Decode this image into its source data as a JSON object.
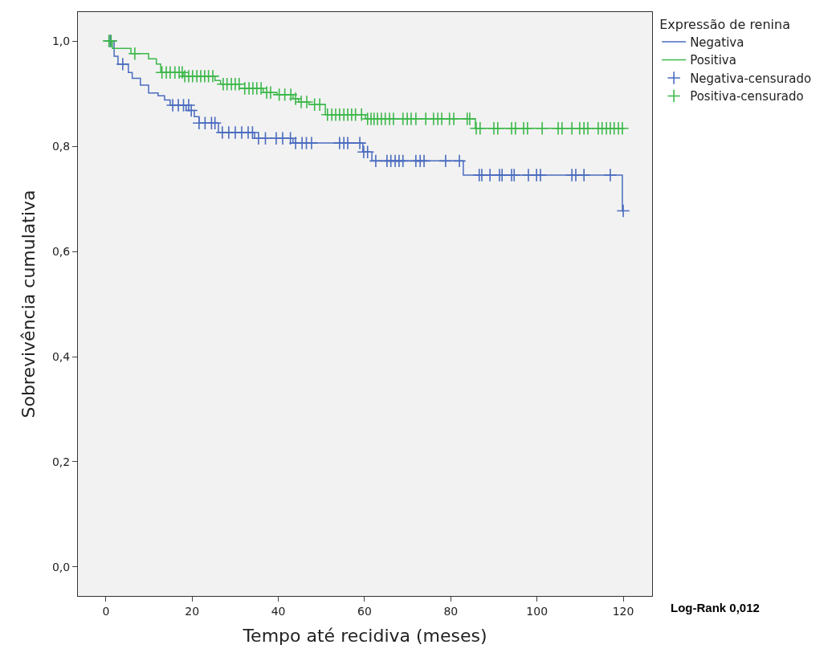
{
  "chart_data": {
    "type": "step",
    "xlabel": "Tempo até recidiva (meses)",
    "ylabel": "Sobrevivência cumulativa",
    "legend_title": "Expressão de renina",
    "annotations": [
      "Log-Rank 0,012"
    ],
    "xlim": [
      -6.5,
      126.7
    ],
    "ylim": [
      -0.055,
      1.055
    ],
    "xticks": [
      0,
      20,
      40,
      60,
      80,
      100,
      120
    ],
    "yticks": [
      {
        "value": 0,
        "label": "0,0"
      },
      {
        "value": 0.2,
        "label": "0,2"
      },
      {
        "value": 0.4,
        "label": "0,4"
      },
      {
        "value": 0.6,
        "label": "0,6"
      },
      {
        "value": 0.8,
        "label": "0,8"
      },
      {
        "value": 1.0,
        "label": "1,0"
      }
    ],
    "grid": false,
    "legend": "top right",
    "series": [
      {
        "name": "Negativa",
        "color": "#4a6bbf",
        "x": [
          0,
          1.9,
          2.8,
          5.2,
          6.1,
          8.0,
          9.9,
          12.1,
          13.6,
          14.9,
          18.6,
          20.5,
          21.6,
          26.1,
          34.5,
          43.4,
          59.6,
          61.7,
          82.9,
          119.8,
          120
        ],
        "values": [
          1.0,
          0.971,
          0.956,
          0.94,
          0.929,
          0.916,
          0.901,
          0.896,
          0.888,
          0.878,
          0.868,
          0.856,
          0.844,
          0.826,
          0.815,
          0.806,
          0.789,
          0.772,
          0.745,
          0.677,
          0.677
        ]
      },
      {
        "name": "Positiva",
        "color": "#3cb84a",
        "x": [
          0,
          1.5,
          5.8,
          9.9,
          11.7,
          12.7,
          17.9,
          25.3,
          26.6,
          30.9,
          36.5,
          39.7,
          43.4,
          44.7,
          47.1,
          50.9,
          60.2,
          85.7,
          120
        ],
        "values": [
          1.0,
          0.986,
          0.976,
          0.966,
          0.956,
          0.94,
          0.933,
          0.925,
          0.918,
          0.91,
          0.902,
          0.898,
          0.89,
          0.884,
          0.879,
          0.86,
          0.852,
          0.834,
          0.834
        ]
      },
      {
        "name": "Negativa-censurado",
        "type": "scatter",
        "marker": "cross",
        "color": "#4a6bbf",
        "x": [
          1.0,
          3.9,
          15.5,
          16.8,
          18.0,
          19.2,
          19.8,
          21.6,
          23.0,
          24.5,
          25.3,
          27.0,
          28.5,
          30.0,
          31.5,
          33.0,
          34.0,
          35.4,
          37.0,
          39.5,
          41.0,
          42.8,
          44.0,
          45.5,
          46.5,
          47.7,
          54.2,
          55.2,
          56.1,
          58.9,
          59.8,
          60.7,
          62.6,
          65.2,
          66.1,
          67.1,
          68.0,
          68.9,
          71.9,
          72.9,
          73.8,
          78.8,
          82.0,
          86.6,
          87.2,
          89.1,
          91.3,
          91.9,
          94.1,
          94.7,
          98.0,
          99.9,
          100.8,
          108.1,
          109.0,
          110.9,
          117.0,
          120
        ],
        "values": [
          1.0,
          0.956,
          0.878,
          0.878,
          0.878,
          0.878,
          0.868,
          0.844,
          0.844,
          0.844,
          0.844,
          0.826,
          0.826,
          0.826,
          0.826,
          0.826,
          0.826,
          0.815,
          0.815,
          0.815,
          0.815,
          0.815,
          0.806,
          0.806,
          0.806,
          0.806,
          0.806,
          0.806,
          0.806,
          0.806,
          0.789,
          0.789,
          0.772,
          0.772,
          0.772,
          0.772,
          0.772,
          0.772,
          0.772,
          0.772,
          0.772,
          0.772,
          0.772,
          0.745,
          0.745,
          0.745,
          0.745,
          0.745,
          0.745,
          0.745,
          0.745,
          0.745,
          0.745,
          0.745,
          0.745,
          0.745,
          0.745,
          0.677
        ]
      },
      {
        "name": "Positiva-censurado",
        "type": "scatter",
        "marker": "cross",
        "color": "#3cb84a",
        "x": [
          0.7,
          1.2,
          6.7,
          13.0,
          14.0,
          14.9,
          16.0,
          17.0,
          17.7,
          18.3,
          19.2,
          20.1,
          21.1,
          22.0,
          22.9,
          23.8,
          24.8,
          27.2,
          28.1,
          29.1,
          30.0,
          30.9,
          32.2,
          33.2,
          34.1,
          35.0,
          36.0,
          37.3,
          38.2,
          40.2,
          41.5,
          42.9,
          44.0,
          45.3,
          46.6,
          48.4,
          49.6,
          51.4,
          52.4,
          53.3,
          54.2,
          55.2,
          56.1,
          57.0,
          57.9,
          59.3,
          60.7,
          61.5,
          62.2,
          63.0,
          63.9,
          64.8,
          65.8,
          66.7,
          68.9,
          69.9,
          70.8,
          71.9,
          74.2,
          76.0,
          77.0,
          77.9,
          79.7,
          80.7,
          83.8,
          84.4,
          85.9,
          86.8,
          90.0,
          90.9,
          94.1,
          95.0,
          96.9,
          97.8,
          101.2,
          104.9,
          105.8,
          108.1,
          109.9,
          110.9,
          111.8,
          114.2,
          115.1,
          116.1,
          117.0,
          117.9,
          118.9,
          119.8
        ],
        "values": [
          1.0,
          1.0,
          0.976,
          0.94,
          0.94,
          0.94,
          0.94,
          0.94,
          0.94,
          0.933,
          0.933,
          0.933,
          0.933,
          0.933,
          0.933,
          0.933,
          0.933,
          0.918,
          0.918,
          0.918,
          0.918,
          0.918,
          0.91,
          0.91,
          0.91,
          0.91,
          0.91,
          0.902,
          0.902,
          0.898,
          0.898,
          0.898,
          0.89,
          0.884,
          0.884,
          0.879,
          0.879,
          0.86,
          0.86,
          0.86,
          0.86,
          0.86,
          0.86,
          0.86,
          0.86,
          0.86,
          0.852,
          0.852,
          0.852,
          0.852,
          0.852,
          0.852,
          0.852,
          0.852,
          0.852,
          0.852,
          0.852,
          0.852,
          0.852,
          0.852,
          0.852,
          0.852,
          0.852,
          0.852,
          0.852,
          0.852,
          0.834,
          0.834,
          0.834,
          0.834,
          0.834,
          0.834,
          0.834,
          0.834,
          0.834,
          0.834,
          0.834,
          0.834,
          0.834,
          0.834,
          0.834,
          0.834,
          0.834,
          0.834,
          0.834,
          0.834,
          0.834,
          0.834
        ]
      }
    ]
  }
}
